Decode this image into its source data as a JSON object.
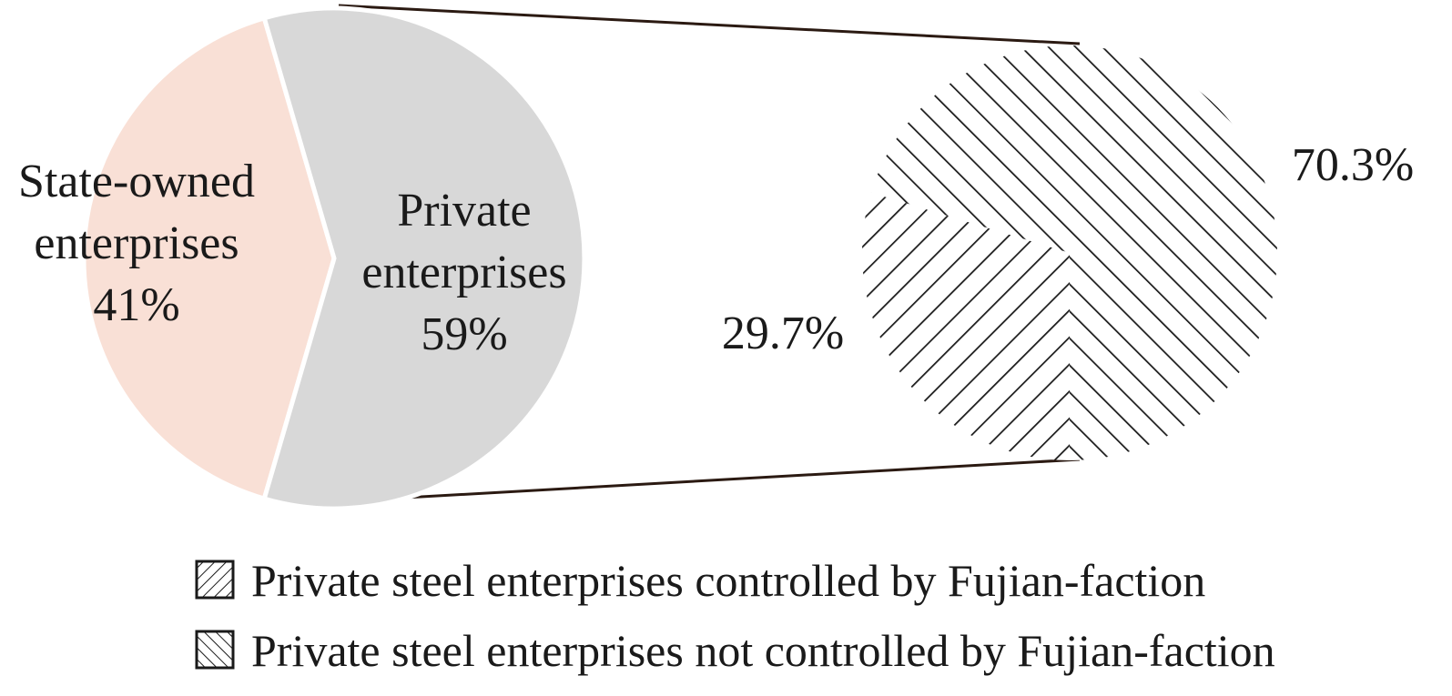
{
  "chart_data": [
    {
      "type": "pie",
      "title": "",
      "slices": [
        {
          "label": "State-owned enterprises",
          "value": 41,
          "value_label": "41%",
          "color": "#f9e0d6"
        },
        {
          "label": "Private enterprises",
          "value": 59,
          "value_label": "59%",
          "color": "#d8d8d8"
        }
      ]
    },
    {
      "type": "pie",
      "title": "",
      "breakdown_of": "Private enterprises",
      "slices": [
        {
          "label": "Private steel enterprises controlled by Fujian-faction",
          "value": 29.7,
          "value_label": "29.7%",
          "pattern": "hatch-forward"
        },
        {
          "label": "Private steel enterprises not controlled by Fujian-faction",
          "value": 70.3,
          "value_label": "70.3%",
          "pattern": "hatch-backward"
        }
      ],
      "legend": {
        "position": "bottom",
        "entries": [
          {
            "label": "Private steel enterprises controlled by Fujian-faction",
            "pattern": "hatch-forward"
          },
          {
            "label": "Private steel enterprises not controlled by Fujian-faction",
            "pattern": "hatch-backward"
          }
        ]
      }
    }
  ],
  "labels": {
    "state_line1": "State-owned",
    "state_line2": "enterprises",
    "state_pct": "41%",
    "private_line1": "Private",
    "private_line2": "enterprises",
    "private_pct": "59%",
    "fujian_pct": "29.7%",
    "nonfujian_pct": "70.3%",
    "legend_fujian": "Private steel enterprises controlled by Fujian-faction",
    "legend_nonfujian": "Private steel enterprises not controlled by Fujian-faction"
  },
  "colors": {
    "state": "#f9e0d6",
    "private": "#d8d8d8",
    "hatch": "#1a1a1a",
    "connector": "#2b1a12"
  }
}
